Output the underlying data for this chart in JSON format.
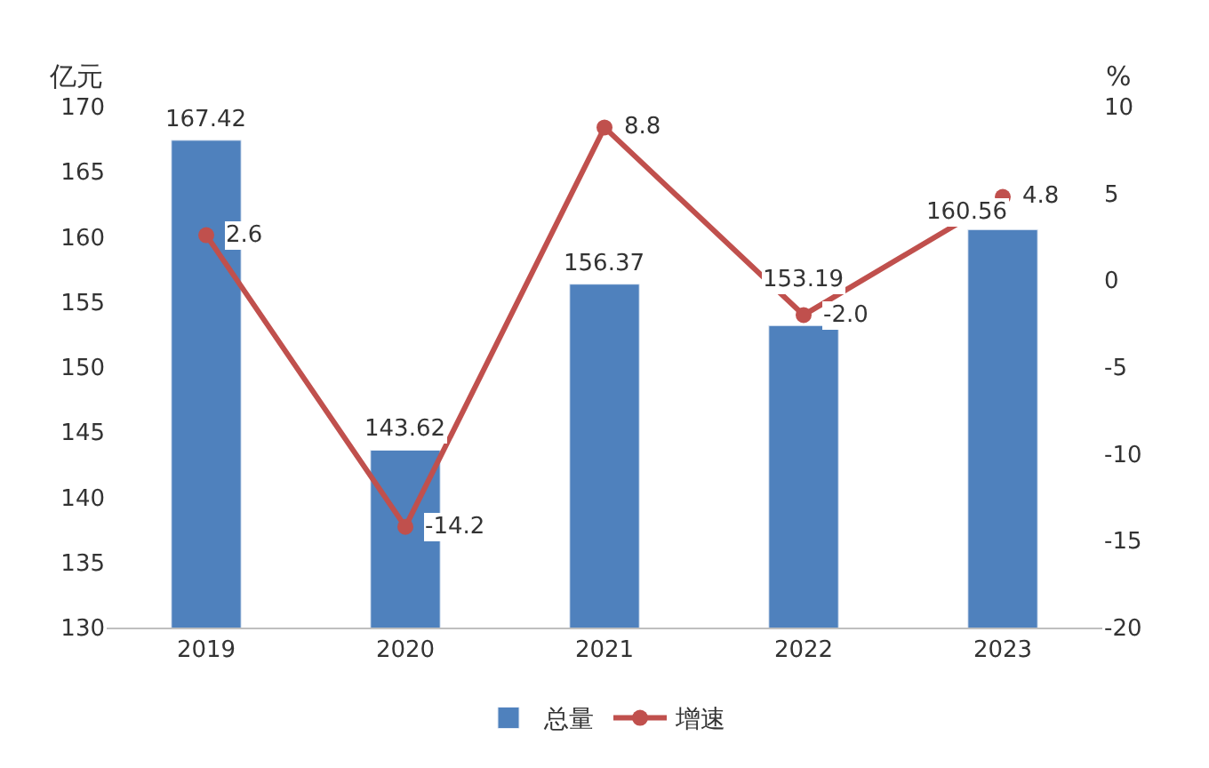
{
  "chart_data": {
    "type": "bar",
    "categories": [
      "2019",
      "2020",
      "2021",
      "2022",
      "2023"
    ],
    "ylabel": "亿元",
    "y2label": "%",
    "series": [
      {
        "name": "总量",
        "color": "#4f81bd",
        "values": [
          167.42,
          143.62,
          156.37,
          153.19,
          160.56
        ],
        "value_labels": [
          "167.42",
          "143.62",
          "156.37",
          "153.19",
          "160.56"
        ]
      },
      {
        "name": "增速",
        "type": "line",
        "axis": "y2",
        "color": "#c0504d",
        "marker": "circle",
        "values": [
          2.6,
          -14.2,
          8.8,
          -2.0,
          4.8
        ],
        "value_labels": [
          "2.6",
          "-14.2",
          "8.8",
          "-2.0",
          "4.8"
        ]
      }
    ],
    "ylim": [
      130,
      170
    ],
    "yticks": [
      130,
      135,
      140,
      145,
      150,
      155,
      160,
      165,
      170
    ],
    "y2lim": [
      -20,
      10
    ],
    "y2ticks": [
      -20,
      -15,
      -10,
      -5,
      0,
      5,
      10
    ],
    "grid": false,
    "legend": "bottom"
  }
}
